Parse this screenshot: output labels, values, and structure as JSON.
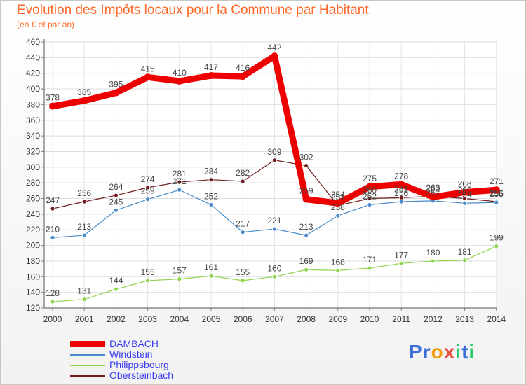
{
  "title": "Evolution des Impôts locaux pour la Commune par Habitant",
  "subtitle": "(en € et par an)",
  "logo": [
    "P",
    "r",
    "o",
    "x",
    "i",
    "t",
    "i"
  ],
  "colors": {
    "title": "#ff6a2a",
    "legend_text": "#3a3af0",
    "grid": "#dddddd"
  },
  "chart_data": {
    "type": "line",
    "x": [
      "2000",
      "2001",
      "2002",
      "2003",
      "2004",
      "2005",
      "2006",
      "2007",
      "2008",
      "2009",
      "2010",
      "2011",
      "2012",
      "2013",
      "2014"
    ],
    "ylim": [
      120,
      460
    ],
    "yticks": [
      120,
      140,
      160,
      180,
      200,
      220,
      240,
      260,
      280,
      300,
      320,
      340,
      360,
      380,
      400,
      420,
      440,
      460
    ],
    "grid": true,
    "legend_position": "bottom-left",
    "series": [
      {
        "name": "DAMBACH",
        "color": "#ee0000",
        "width": 9,
        "values": [
          378,
          385,
          395,
          415,
          410,
          417,
          416,
          442,
          259,
          254,
          275,
          278,
          262,
          268,
          271
        ],
        "labels": [
          "378",
          "385",
          "395",
          "415",
          "410",
          "417",
          "416",
          "442",
          "259",
          "254",
          "275",
          "278",
          "262",
          "268",
          "271"
        ]
      },
      {
        "name": "Windstein",
        "color": "#4a8ccc",
        "width": 1.2,
        "values": [
          210,
          213,
          245,
          259,
          271,
          252,
          217,
          221,
          213,
          238,
          252,
          256,
          257,
          254,
          255
        ],
        "labels": [
          "210",
          "213",
          "245",
          "259",
          "271",
          "252",
          "217",
          "221",
          "213",
          "238",
          "252",
          "256",
          "257",
          "254",
          "255"
        ]
      },
      {
        "name": "Philippsbourg",
        "color": "#8ed44c",
        "width": 1.2,
        "values": [
          128,
          131,
          144,
          155,
          157,
          161,
          155,
          160,
          169,
          168,
          171,
          177,
          180,
          181,
          199
        ],
        "labels": [
          "128",
          "131",
          "144",
          "155",
          "157",
          "161",
          "155",
          "160",
          "169",
          "168",
          "171",
          "177",
          "180",
          "181",
          "199"
        ]
      },
      {
        "name": "Obersteinbach",
        "color": "#6e1c1c",
        "width": 1.2,
        "values": [
          247,
          256,
          264,
          274,
          281,
          284,
          282,
          309,
          302,
          251,
          260,
          261,
          263,
          260,
          256
        ],
        "labels": [
          "247",
          "256",
          "264",
          "274",
          "281",
          "284",
          "282",
          "309",
          "302",
          "251",
          "260",
          "261",
          "263",
          "260",
          "256"
        ]
      }
    ]
  }
}
